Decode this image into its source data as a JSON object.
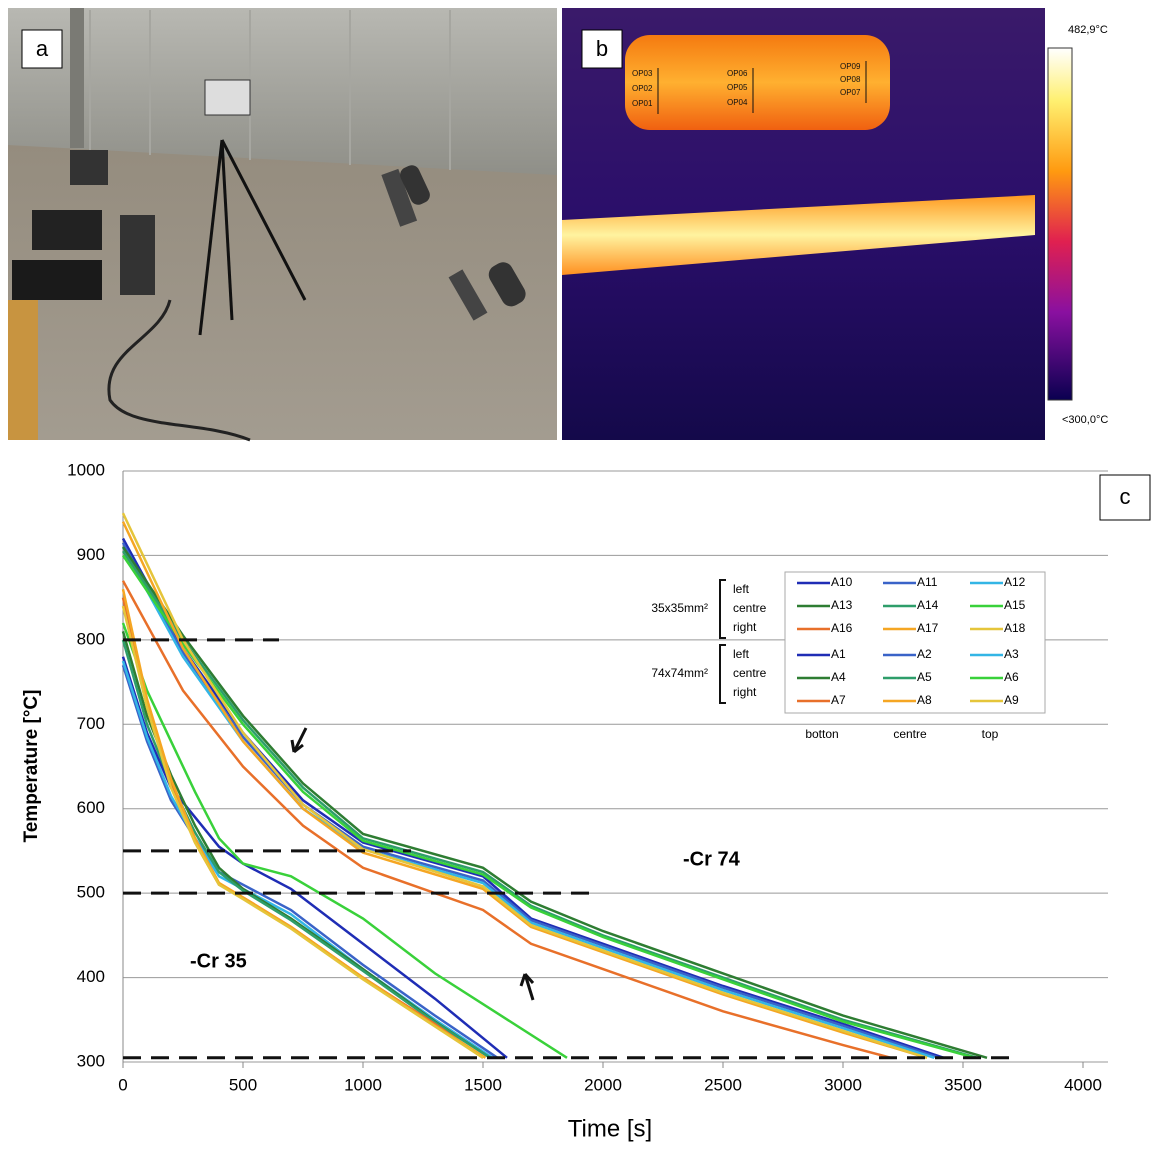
{
  "panels": {
    "a": "a",
    "b": "b"
  },
  "thermal_image": {
    "max_label": "482,9°C",
    "min_label": "<300,0°C",
    "point_labels": [
      "OP03",
      "OP02",
      "OP01",
      "OP06",
      "OP05",
      "OP04",
      "OP09",
      "OP08",
      "OP07"
    ]
  },
  "chart_data": {
    "type": "line",
    "panel_label": "c",
    "xlabel": "Time [s]",
    "ylabel": "Temperature [°C]",
    "xlim": [
      0,
      4000
    ],
    "xticks": [
      0,
      500,
      1000,
      1500,
      2000,
      2500,
      3000,
      3500,
      4000
    ],
    "ylim": [
      300,
      1000
    ],
    "yticks": [
      300,
      400,
      500,
      600,
      700,
      800,
      900,
      1000
    ],
    "grid": true,
    "reference_lines": [
      {
        "y": 800,
        "x_end": 650
      },
      {
        "y": 550,
        "x_end": 1200
      },
      {
        "y": 500,
        "x_end": 1950
      },
      {
        "y": 305,
        "x_end": 3700
      }
    ],
    "annotations": [
      "-Cr 35",
      "-Cr 74"
    ],
    "legend_groups": [
      {
        "label": "35x35mm²",
        "rows": [
          "left",
          "centre",
          "right"
        ]
      },
      {
        "label": "74x74mm²",
        "rows": [
          "left",
          "centre",
          "right"
        ]
      }
    ],
    "legend_columns": [
      "botton",
      "centre",
      "top"
    ],
    "series": [
      {
        "name": "A10",
        "color": "#1f2db5",
        "x": [
          0,
          100,
          200,
          300,
          400,
          500,
          700,
          1000,
          1300,
          1600
        ],
        "values": [
          780,
          690,
          625,
          590,
          555,
          535,
          505,
          440,
          375,
          305
        ]
      },
      {
        "name": "A11",
        "color": "#3a63c8",
        "x": [
          0,
          100,
          200,
          300,
          400,
          500,
          700,
          1000,
          1300,
          1560
        ],
        "values": [
          770,
          680,
          610,
          565,
          525,
          510,
          480,
          415,
          355,
          305
        ]
      },
      {
        "name": "A12",
        "color": "#33b5e5",
        "x": [
          0,
          100,
          200,
          300,
          400,
          500,
          700,
          1000,
          1300,
          1540
        ],
        "values": [
          775,
          685,
          615,
          565,
          520,
          505,
          475,
          410,
          350,
          305
        ]
      },
      {
        "name": "A13",
        "color": "#2e7d32",
        "x": [
          0,
          100,
          200,
          300,
          400,
          500,
          700,
          1000,
          1300,
          1530
        ],
        "values": [
          810,
          710,
          640,
          580,
          530,
          505,
          470,
          410,
          348,
          305
        ]
      },
      {
        "name": "A14",
        "color": "#2e9e6a",
        "x": [
          0,
          100,
          200,
          300,
          400,
          500,
          700,
          1000,
          1300,
          1530
        ],
        "values": [
          800,
          700,
          630,
          572,
          525,
          503,
          468,
          408,
          347,
          305
        ]
      },
      {
        "name": "A15",
        "color": "#39d13a",
        "x": [
          0,
          100,
          200,
          300,
          400,
          500,
          700,
          1000,
          1300,
          1850
        ],
        "values": [
          820,
          740,
          680,
          620,
          565,
          535,
          520,
          470,
          405,
          305
        ]
      },
      {
        "name": "A16",
        "color": "#e8702a",
        "x": [
          0,
          100,
          200,
          300,
          400,
          500,
          700,
          1000,
          1300,
          1500
        ],
        "values": [
          850,
          720,
          630,
          560,
          510,
          495,
          460,
          400,
          345,
          305
        ]
      },
      {
        "name": "A17",
        "color": "#f5a623",
        "x": [
          0,
          100,
          200,
          300,
          400,
          500,
          700,
          1000,
          1300,
          1510
        ],
        "values": [
          860,
          730,
          635,
          565,
          512,
          495,
          460,
          400,
          343,
          305
        ]
      },
      {
        "name": "A18",
        "color": "#e5c53a",
        "x": [
          0,
          100,
          200,
          300,
          400,
          500,
          700,
          1000,
          1300,
          1500
        ],
        "values": [
          840,
          720,
          625,
          560,
          510,
          493,
          458,
          398,
          342,
          305
        ]
      },
      {
        "name": "A1",
        "color": "#1f2db5",
        "x": [
          0,
          250,
          500,
          750,
          1000,
          1500,
          1700,
          2000,
          2500,
          3000,
          3420
        ],
        "values": [
          920,
          790,
          690,
          610,
          560,
          520,
          470,
          440,
          390,
          345,
          305
        ]
      },
      {
        "name": "A2",
        "color": "#3a63c8",
        "x": [
          0,
          250,
          500,
          750,
          1000,
          1500,
          1700,
          2000,
          2500,
          3000,
          3400
        ],
        "values": [
          915,
          785,
          685,
          605,
          555,
          515,
          468,
          438,
          388,
          343,
          305
        ]
      },
      {
        "name": "A3",
        "color": "#33b5e5",
        "x": [
          0,
          250,
          500,
          750,
          1000,
          1500,
          1700,
          2000,
          2500,
          3000,
          3380
        ],
        "values": [
          910,
          780,
          680,
          600,
          552,
          512,
          465,
          435,
          385,
          340,
          305
        ]
      },
      {
        "name": "A4",
        "color": "#2e7d32",
        "x": [
          0,
          250,
          500,
          750,
          1000,
          1500,
          1700,
          2000,
          2500,
          3000,
          3600
        ],
        "values": [
          910,
          805,
          710,
          630,
          570,
          530,
          490,
          455,
          405,
          355,
          305
        ]
      },
      {
        "name": "A5",
        "color": "#2e9e6a",
        "x": [
          0,
          250,
          500,
          750,
          1000,
          1500,
          1700,
          2000,
          2500,
          3000,
          3560
        ],
        "values": [
          905,
          800,
          705,
          625,
          565,
          525,
          485,
          450,
          400,
          350,
          305
        ]
      },
      {
        "name": "A6",
        "color": "#39d13a",
        "x": [
          0,
          250,
          500,
          750,
          1000,
          1500,
          1700,
          2000,
          2500,
          3000,
          3550
        ],
        "values": [
          900,
          795,
          700,
          620,
          562,
          522,
          483,
          448,
          398,
          348,
          305
        ]
      },
      {
        "name": "A7",
        "color": "#e8702a",
        "x": [
          0,
          250,
          500,
          750,
          1000,
          1500,
          1700,
          2000,
          2500,
          3000,
          3200
        ],
        "values": [
          870,
          740,
          650,
          580,
          530,
          480,
          440,
          410,
          360,
          320,
          305
        ]
      },
      {
        "name": "A8",
        "color": "#f5a623",
        "x": [
          0,
          250,
          500,
          750,
          1000,
          1500,
          1700,
          2000,
          2500,
          3000,
          3350
        ],
        "values": [
          940,
          790,
          680,
          600,
          548,
          505,
          460,
          430,
          380,
          335,
          305
        ]
      },
      {
        "name": "A9",
        "color": "#e5c53a",
        "x": [
          0,
          250,
          500,
          750,
          1000,
          1500,
          1700,
          2000,
          2500,
          3000,
          3350
        ],
        "values": [
          950,
          800,
          690,
          605,
          552,
          508,
          462,
          432,
          382,
          337,
          305
        ]
      }
    ]
  }
}
